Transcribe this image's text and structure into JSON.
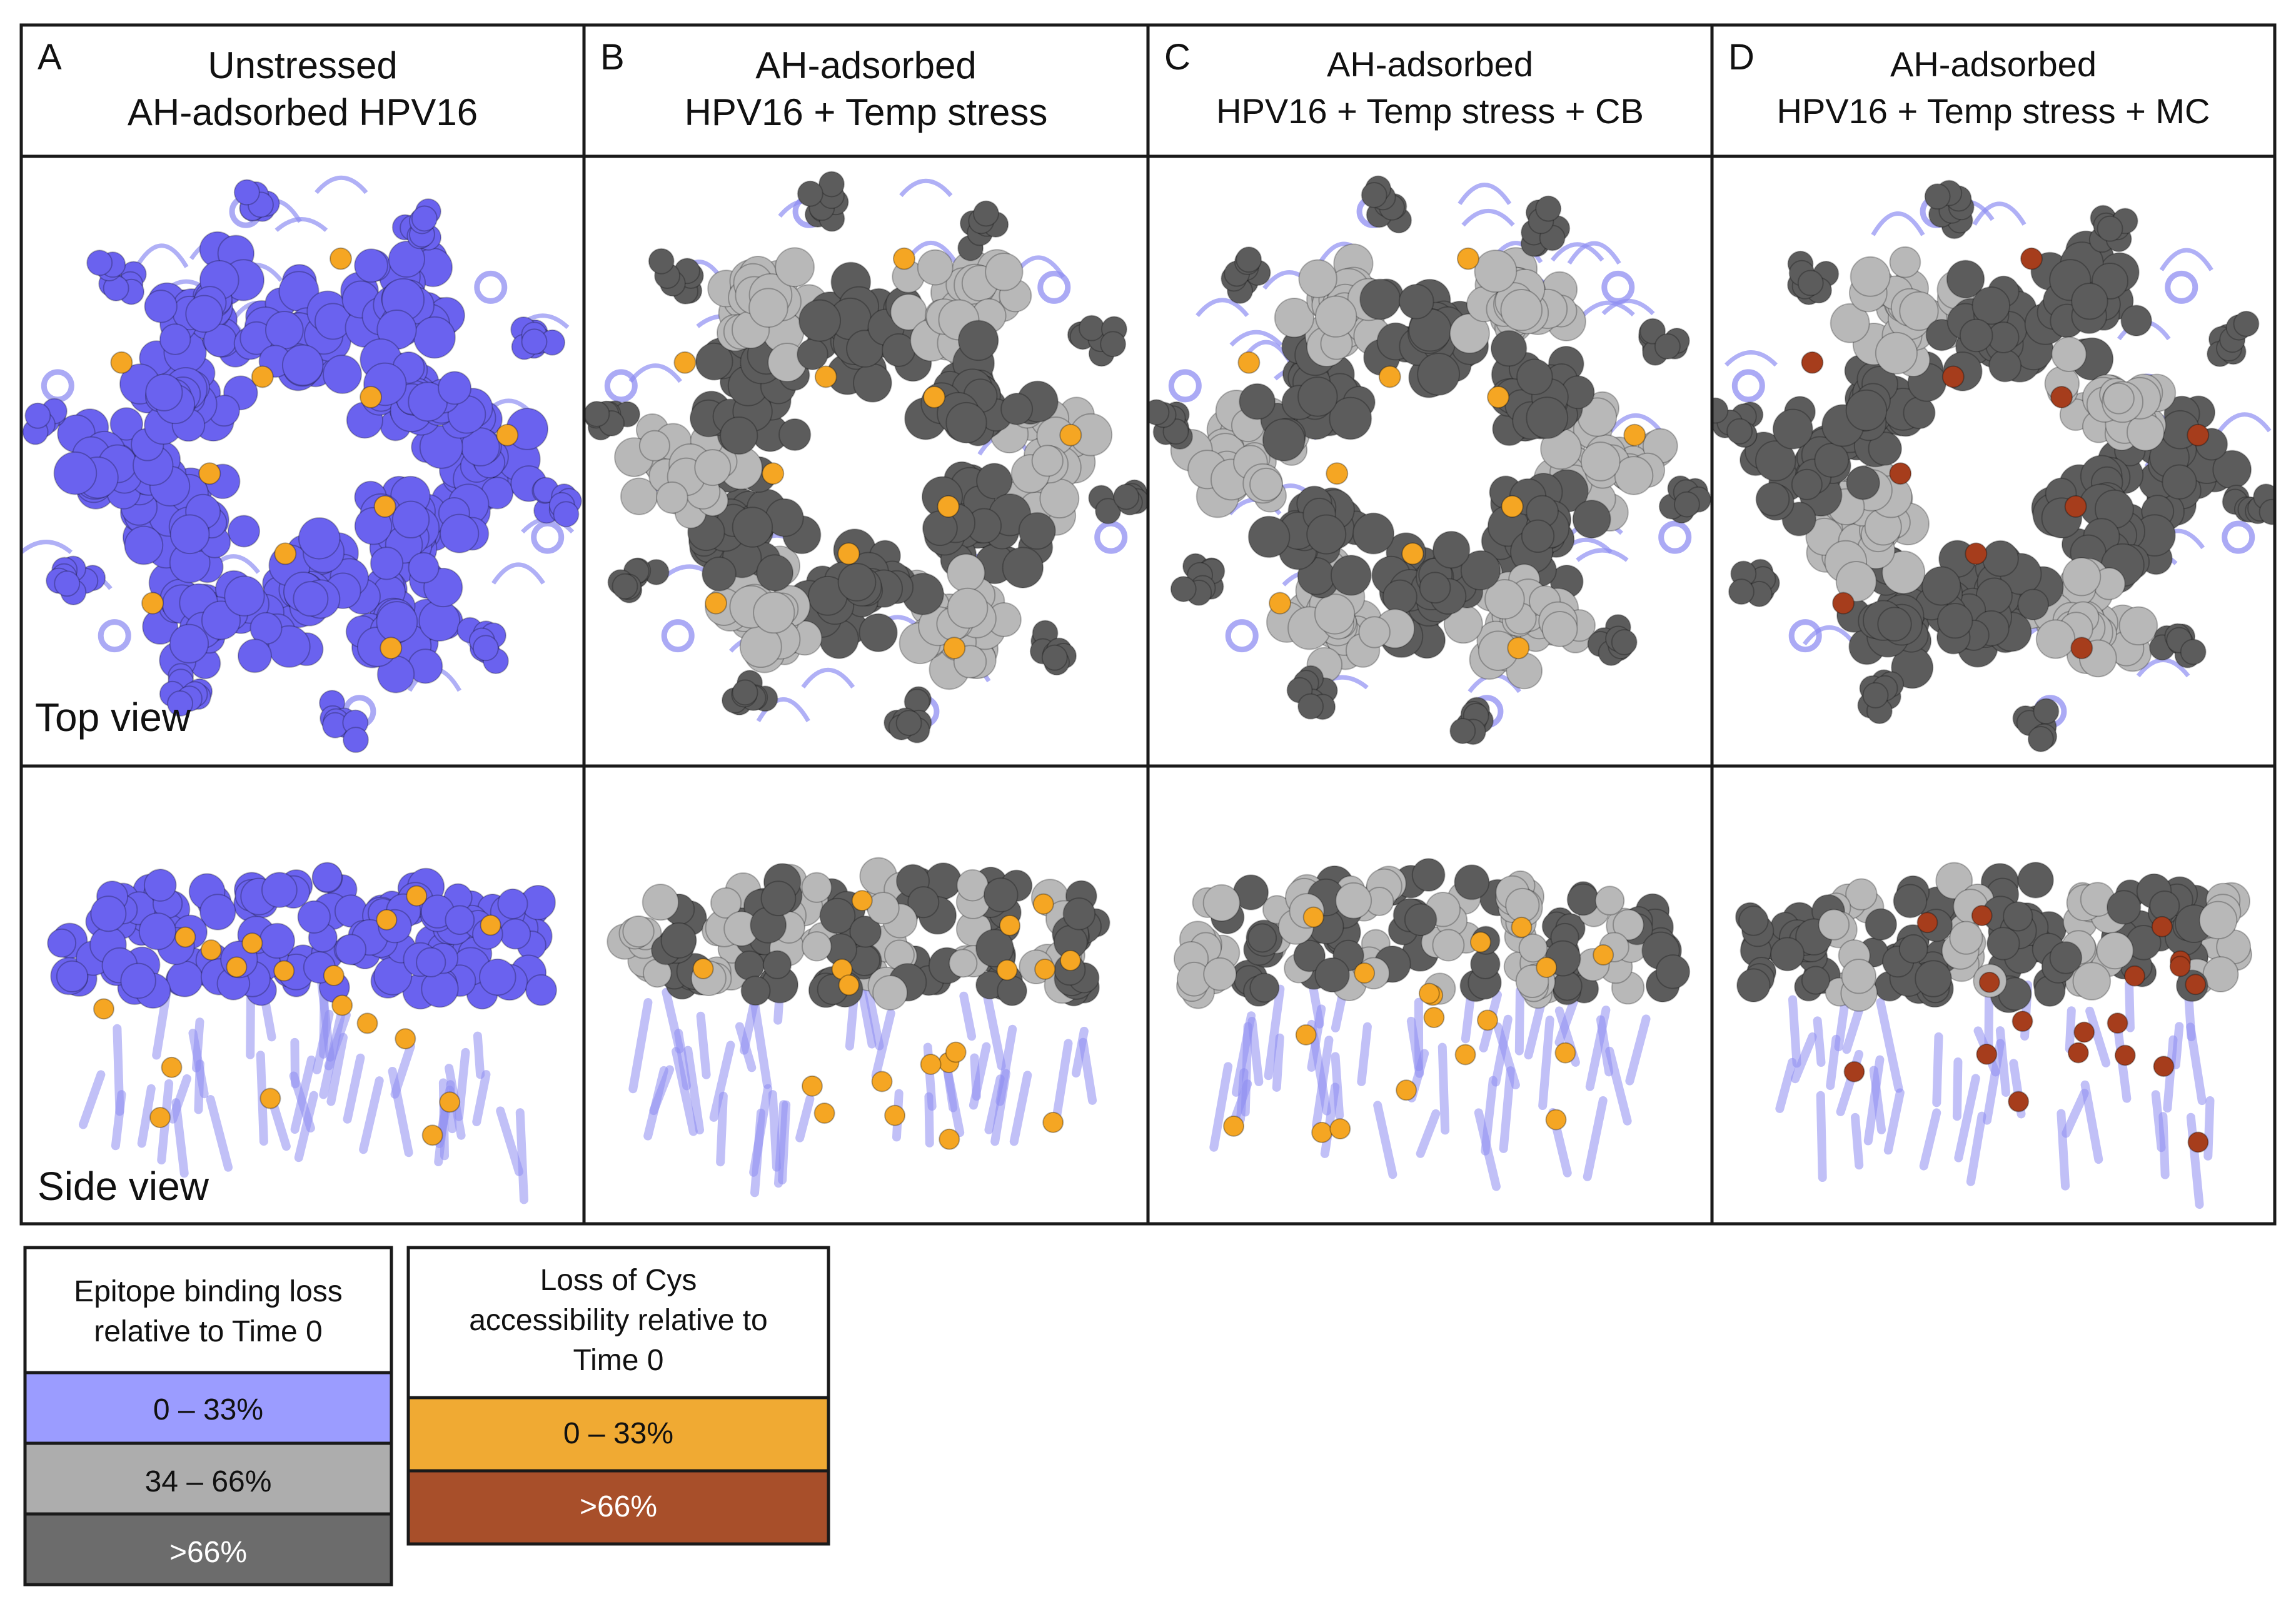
{
  "panels": [
    {
      "letter": "A",
      "title_line1": "Unstressed",
      "title_line2": "AH-adsorbed HPV16",
      "epitope": [
        "low",
        "low",
        "low",
        "low",
        "low",
        "low",
        "low",
        "low",
        "low",
        "low",
        "low",
        "low"
      ],
      "cys": "low"
    },
    {
      "letter": "B",
      "title_line1": "AH-adsorbed",
      "title_line2": "HPV16 + Temp stress",
      "epitope": [
        "mid",
        "high",
        "mid",
        "high",
        "mid",
        "high",
        "mid",
        "high",
        "mid",
        "high",
        "mid",
        "high"
      ],
      "cys": "low"
    },
    {
      "letter": "C",
      "title_line1": "AH-adsorbed",
      "title_line2": "HPV16 + Temp stress + CB",
      "epitope": [
        "mid",
        "high",
        "mid",
        "high",
        "mid",
        "high",
        "mid",
        "high",
        "mid",
        "high",
        "mid",
        "high"
      ],
      "cys": "low"
    },
    {
      "letter": "D",
      "title_line1": "AH-adsorbed",
      "title_line2": "HPV16 + Temp stress + MC",
      "epitope": [
        "high",
        "high",
        "mid",
        "high",
        "high",
        "mid",
        "high",
        "high",
        "mid",
        "high",
        "high",
        "mid"
      ],
      "cys": "high"
    }
  ],
  "view_labels": {
    "top": "Top view",
    "side": "Side view"
  },
  "legend_epitope": {
    "title_lines": [
      "Epitope binding loss",
      "relative to Time 0"
    ],
    "items": [
      {
        "label": "0 – 33%",
        "color": "#9b9cff",
        "text_color": "#111111",
        "level": "low"
      },
      {
        "label": "34 – 66%",
        "color": "#adadad",
        "text_color": "#111111",
        "level": "mid"
      },
      {
        "label": ">66%",
        "color": "#6c6c6c",
        "text_color": "#ffffff",
        "level": "high"
      }
    ]
  },
  "legend_cys": {
    "title_lines": [
      "Loss of Cys",
      "accessibility relative to",
      "Time 0"
    ],
    "items": [
      {
        "label": "0 – 33%",
        "color": "#f0aa33",
        "text_color": "#111111",
        "level": "low"
      },
      {
        "label": ">66%",
        "color": "#a84f2a",
        "text_color": "#ffffff",
        "level": "high"
      }
    ]
  },
  "colors": {
    "epitope_low": "#6a62ef",
    "epitope_mid": "#b8b8b8",
    "epitope_high": "#5c5c5c",
    "cys_low": "#f5a623",
    "cys_high": "#a63d1c",
    "ribbon": "#8f8ef2",
    "border": "#1a1a1a"
  }
}
